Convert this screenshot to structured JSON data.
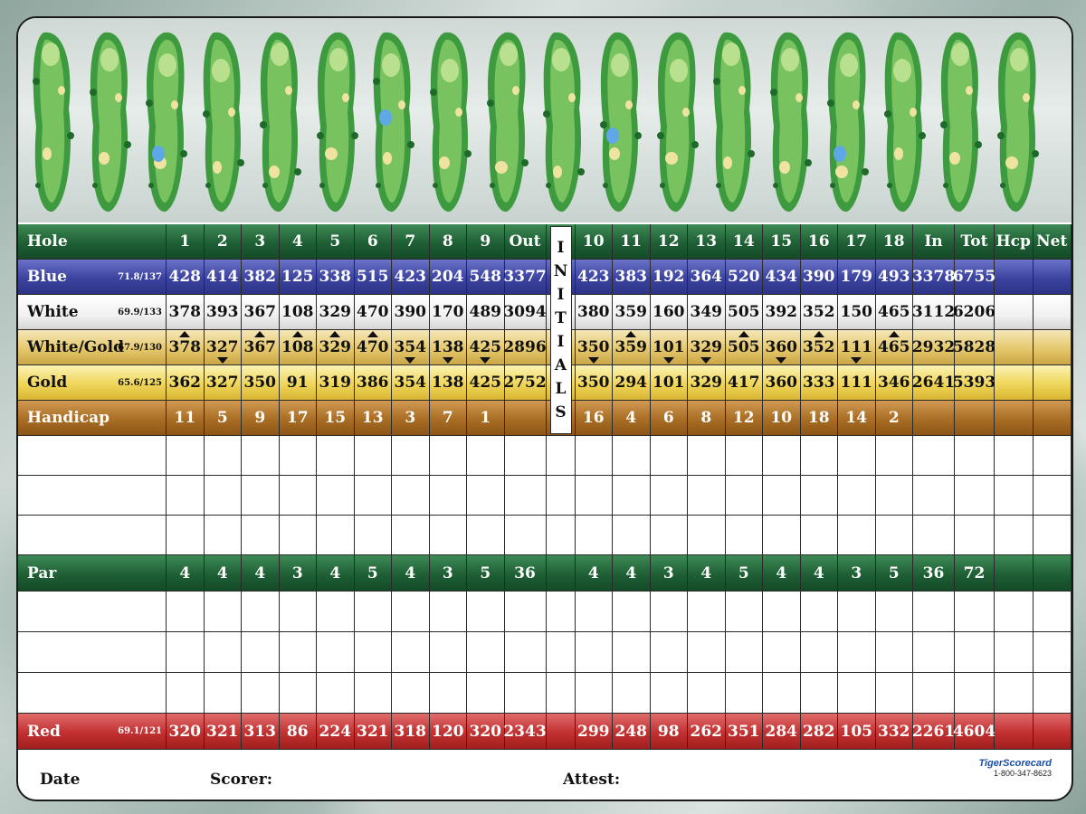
{
  "card": {
    "header_label": "Hole",
    "holes_front": [
      "1",
      "2",
      "3",
      "4",
      "5",
      "6",
      "7",
      "8",
      "9"
    ],
    "out_label": "Out",
    "initials_label": [
      "I",
      "N",
      "I",
      "T",
      "I",
      "A",
      "L",
      "S"
    ],
    "holes_back": [
      "10",
      "11",
      "12",
      "13",
      "14",
      "15",
      "16",
      "17",
      "18"
    ],
    "in_label": "In",
    "tot_label": "Tot",
    "hcp_label": "Hcp",
    "net_label": "Net"
  },
  "tees": {
    "blue": {
      "label": "Blue",
      "rating": "71.8/137",
      "front": [
        "428",
        "414",
        "382",
        "125",
        "338",
        "515",
        "423",
        "204",
        "548"
      ],
      "out": "3377",
      "back": [
        "423",
        "383",
        "192",
        "364",
        "520",
        "434",
        "390",
        "179",
        "493"
      ],
      "in": "3378",
      "tot": "6755"
    },
    "white": {
      "label": "White",
      "rating": "69.9/133",
      "front": [
        "378",
        "393",
        "367",
        "108",
        "329",
        "470",
        "390",
        "170",
        "489"
      ],
      "out": "3094",
      "back": [
        "380",
        "359",
        "160",
        "349",
        "505",
        "392",
        "352",
        "150",
        "465"
      ],
      "in": "3112",
      "tot": "6206"
    },
    "white_gold": {
      "label": "White/Gold",
      "rating": "67.9/130",
      "front": [
        "378",
        "327",
        "367",
        "108",
        "329",
        "470",
        "354",
        "138",
        "425"
      ],
      "out": "2896",
      "back": [
        "350",
        "359",
        "101",
        "329",
        "505",
        "360",
        "352",
        "111",
        "465"
      ],
      "in": "2932",
      "tot": "5828",
      "markers_front": [
        "up",
        "down",
        "up",
        "up",
        "up",
        "up",
        "down",
        "down",
        "down"
      ],
      "markers_back": [
        "down",
        "up",
        "down",
        "down",
        "up",
        "down",
        "up",
        "down",
        "up"
      ]
    },
    "gold": {
      "label": "Gold",
      "rating": "65.6/125",
      "front": [
        "362",
        "327",
        "350",
        "91",
        "319",
        "386",
        "354",
        "138",
        "425"
      ],
      "out": "2752",
      "back": [
        "350",
        "294",
        "101",
        "329",
        "417",
        "360",
        "333",
        "111",
        "346"
      ],
      "in": "2641",
      "tot": "5393"
    },
    "red": {
      "label": "Red",
      "rating": "69.1/121",
      "front": [
        "320",
        "321",
        "313",
        "86",
        "224",
        "321",
        "318",
        "120",
        "320"
      ],
      "out": "2343",
      "back": [
        "299",
        "248",
        "98",
        "262",
        "351",
        "284",
        "282",
        "105",
        "332"
      ],
      "in": "2261",
      "tot": "4604"
    }
  },
  "handicap": {
    "label": "Handicap",
    "front": [
      "11",
      "5",
      "9",
      "17",
      "15",
      "13",
      "3",
      "7",
      "1"
    ],
    "back": [
      "16",
      "4",
      "6",
      "8",
      "12",
      "10",
      "18",
      "14",
      "2"
    ]
  },
  "par": {
    "label": "Par",
    "front": [
      "4",
      "4",
      "4",
      "3",
      "4",
      "5",
      "4",
      "3",
      "5"
    ],
    "out": "36",
    "back": [
      "4",
      "4",
      "3",
      "4",
      "5",
      "4",
      "4",
      "3",
      "5"
    ],
    "in": "36",
    "tot": "72"
  },
  "footer": {
    "date_label": "Date",
    "scorer_label": "Scorer:",
    "attest_label": "Attest:",
    "brand": "TigerScorecard",
    "phone": "1-800-347-8623"
  },
  "colors": {
    "green": "#1f5f35",
    "blue": "#3b43a0",
    "gold": "#efd55a",
    "brown": "#a96d24",
    "red": "#c23030"
  },
  "hole_maps": [
    "hole-1-map-icon",
    "hole-2-map-icon",
    "hole-3-map-icon",
    "hole-4-map-icon",
    "hole-5-map-icon",
    "hole-6-map-icon",
    "hole-7-map-icon",
    "hole-8-map-icon",
    "hole-9-map-icon",
    "hole-10-map-icon",
    "hole-11-map-icon",
    "hole-12-map-icon",
    "hole-13-map-icon",
    "hole-14-map-icon",
    "hole-15-map-icon",
    "hole-16-map-icon",
    "hole-17-map-icon",
    "hole-18-map-icon"
  ]
}
